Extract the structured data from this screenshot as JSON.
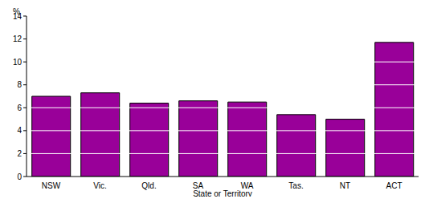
{
  "chart_data": {
    "type": "bar",
    "categories": [
      "NSW",
      "Vic.",
      "Qld.",
      "SA",
      "WA",
      "Tas.",
      "NT",
      "ACT"
    ],
    "values": [
      7.0,
      7.3,
      6.4,
      6.6,
      6.5,
      5.4,
      5.0,
      11.7
    ],
    "color": "#990099",
    "x_label": "State or Territory",
    "y_label": "%",
    "ylim": [
      0,
      14
    ],
    "yticks": [
      0,
      2,
      4,
      6,
      8,
      10,
      12,
      14
    ],
    "grid": true
  }
}
